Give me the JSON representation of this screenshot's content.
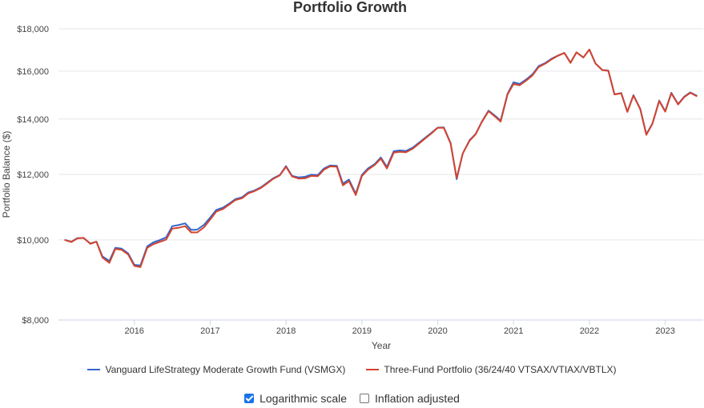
{
  "chart_data": {
    "type": "line",
    "title": "Portfolio Growth",
    "xlabel": "Year",
    "ylabel": "Portfolio Balance ($)",
    "x_ticks": [
      "2016",
      "2017",
      "2018",
      "2019",
      "2020",
      "2021",
      "2022",
      "2023"
    ],
    "y_ticks": [
      "$8,000",
      "$10,000",
      "$12,000",
      "$14,000",
      "$16,000",
      "$18,000"
    ],
    "y_scale": "log",
    "ylim": [
      8000,
      18000
    ],
    "xlim": [
      2015.0,
      2023.5
    ],
    "grid": true,
    "legend_position": "bottom",
    "x": [
      2015.08,
      2015.17,
      2015.25,
      2015.33,
      2015.42,
      2015.5,
      2015.58,
      2015.67,
      2015.75,
      2015.83,
      2015.92,
      2016.0,
      2016.08,
      2016.17,
      2016.25,
      2016.33,
      2016.42,
      2016.5,
      2016.58,
      2016.67,
      2016.75,
      2016.83,
      2016.92,
      2017.0,
      2017.08,
      2017.17,
      2017.25,
      2017.33,
      2017.42,
      2017.5,
      2017.58,
      2017.67,
      2017.75,
      2017.83,
      2017.92,
      2018.0,
      2018.08,
      2018.17,
      2018.25,
      2018.33,
      2018.42,
      2018.5,
      2018.58,
      2018.67,
      2018.75,
      2018.83,
      2018.92,
      2019.0,
      2019.08,
      2019.17,
      2019.25,
      2019.33,
      2019.42,
      2019.5,
      2019.58,
      2019.67,
      2019.75,
      2019.83,
      2019.92,
      2020.0,
      2020.08,
      2020.17,
      2020.25,
      2020.33,
      2020.42,
      2020.5,
      2020.58,
      2020.67,
      2020.75,
      2020.83,
      2020.92,
      2021.0,
      2021.08,
      2021.17,
      2021.25,
      2021.33,
      2021.42,
      2021.5,
      2021.58,
      2021.67,
      2021.75,
      2021.83,
      2021.92,
      2022.0,
      2022.08,
      2022.17,
      2022.25,
      2022.33,
      2022.42,
      2022.5,
      2022.58,
      2022.67,
      2022.75,
      2022.83,
      2022.92,
      2023.0,
      2023.08,
      2023.17,
      2023.25,
      2023.33,
      2023.42
    ],
    "series": [
      {
        "name": "Vanguard LifeStrategy Moderate Growth Fund (VSMGX)",
        "color": "#3366cc",
        "values": [
          10000,
          9950,
          10050,
          10050,
          9900,
          9950,
          9550,
          9430,
          9780,
          9760,
          9630,
          9330,
          9310,
          9820,
          9930,
          9990,
          10070,
          10390,
          10420,
          10470,
          10280,
          10290,
          10430,
          10640,
          10870,
          10940,
          11060,
          11200,
          11260,
          11410,
          11470,
          11580,
          11720,
          11870,
          11980,
          12280,
          11950,
          11900,
          11920,
          11990,
          11980,
          12200,
          12300,
          12290,
          11700,
          11830,
          11370,
          11980,
          12200,
          12350,
          12580,
          12250,
          12800,
          12830,
          12810,
          12930,
          13100,
          13280,
          13480,
          13670,
          13680,
          13100,
          11840,
          12720,
          13200,
          13430,
          13890,
          14330,
          14140,
          13940,
          15020,
          15510,
          15440,
          15640,
          15860,
          16220,
          16370,
          16560,
          16700,
          16830,
          16380,
          16860,
          16620,
          16990,
          16340,
          16050,
          16020,
          15000,
          15050,
          14290,
          14960,
          14410,
          13420,
          13820,
          14740,
          14310,
          15060,
          14600,
          14900,
          15080,
          14930
        ]
      },
      {
        "name": "Three-Fund Portfolio (36/24/40 VTSAX/VTIAX/VBTLX)",
        "color": "#d4442e",
        "values": [
          10000,
          9940,
          10040,
          10060,
          9890,
          9950,
          9520,
          9380,
          9750,
          9730,
          9600,
          9300,
          9270,
          9780,
          9880,
          9940,
          10010,
          10320,
          10340,
          10390,
          10210,
          10210,
          10360,
          10580,
          10820,
          10900,
          11030,
          11170,
          11230,
          11380,
          11450,
          11560,
          11700,
          11850,
          11970,
          12260,
          11930,
          11860,
          11870,
          11950,
          11940,
          12160,
          12270,
          12260,
          11640,
          11780,
          11330,
          11940,
          12160,
          12320,
          12540,
          12200,
          12750,
          12780,
          12760,
          12890,
          13070,
          13250,
          13460,
          13660,
          13660,
          13080,
          11880,
          12720,
          13180,
          13420,
          13880,
          14310,
          14110,
          13900,
          14990,
          15440,
          15380,
          15590,
          15810,
          16180,
          16340,
          16530,
          16690,
          16830,
          16370,
          16860,
          16620,
          16990,
          16340,
          16050,
          16010,
          14990,
          15040,
          14280,
          14950,
          14390,
          13400,
          13810,
          14720,
          14290,
          15040,
          14580,
          14880,
          15060,
          14910
        ]
      }
    ]
  },
  "options": {
    "log_label": "Logarithmic scale",
    "log_checked": true,
    "inflation_label": "Inflation adjusted",
    "inflation_checked": false
  }
}
